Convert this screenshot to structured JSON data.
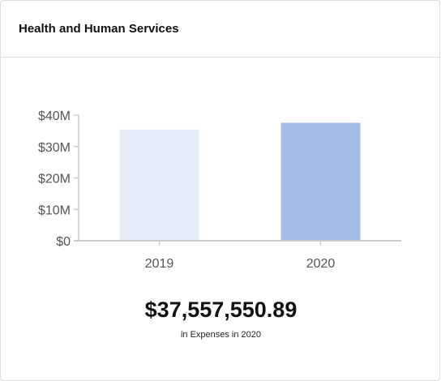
{
  "card": {
    "title": "Health and Human Services"
  },
  "chart_data": {
    "type": "bar",
    "categories": [
      "2019",
      "2020"
    ],
    "values": [
      35400000,
      37557550.89
    ],
    "colors": [
      "#e5ecf7",
      "#a3bde6"
    ],
    "axis_color": "#cccccc",
    "title": "",
    "xlabel": "",
    "ylabel": "",
    "ylim": [
      0,
      40000000
    ],
    "yticks": [
      0,
      10000000,
      20000000,
      30000000,
      40000000
    ],
    "ytick_labels": [
      "$0",
      "$10M",
      "$20M",
      "$30M",
      "$40M"
    ],
    "grid": false,
    "legend": "none"
  },
  "summary": {
    "value": "$37,557,550.89",
    "caption": "in Expenses in 2020"
  }
}
